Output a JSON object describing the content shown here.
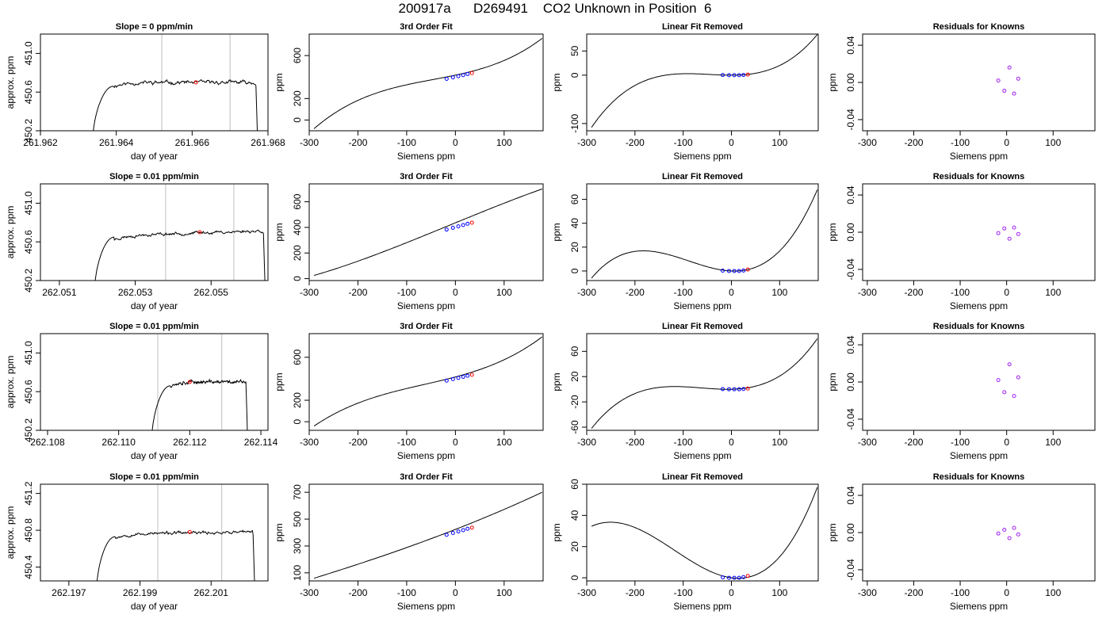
{
  "figure": {
    "title": "200917a      D269491    CO2 Unknown in Position  6",
    "colors": {
      "trace": "#000000",
      "grid_marker": "#bebebe",
      "known": "#0000ff",
      "unknown": "#ff0000",
      "residual": "#a020f0"
    }
  },
  "chart_data": [
    {
      "type": "line",
      "row": 0,
      "col": 0,
      "title": "Slope =  0  ppm/min",
      "xlabel": "day of year",
      "ylabel": "approx. ppm",
      "xlim": [
        261.962,
        261.968
      ],
      "ylim": [
        450.2,
        451.2
      ],
      "xticks": [
        "261.962",
        "261.964",
        "261.966",
        "261.968"
      ],
      "yticks": [
        "450.2",
        "450.6",
        "451.0"
      ],
      "vlines": [
        261.9652,
        261.967
      ],
      "marker": {
        "x": 261.9661,
        "y": 450.7
      },
      "trace": {
        "x_start": 261.96338,
        "x_rise": 261.96392,
        "x_fall": 261.96768,
        "x_end": 261.96775,
        "start_y": 450.1,
        "plateau_y": 450.7,
        "drift": 0.0,
        "noise": 0.012,
        "seed": 11
      }
    },
    {
      "type": "scatter",
      "row": 0,
      "col": 1,
      "title": "3rd Order Fit",
      "xlabel": "Siemens ppm",
      "ylabel": "ppm",
      "xlim": [
        -300,
        180
      ],
      "ylim": [
        -100,
        800
      ],
      "xticks": [
        "-300",
        "-200",
        "-100",
        "0",
        "100"
      ],
      "yticks": [
        "0",
        "200",
        "600"
      ],
      "knowns": [
        {
          "x": -18,
          "y": 383
        },
        {
          "x": -5,
          "y": 397
        },
        {
          "x": 6,
          "y": 408
        },
        {
          "x": 16,
          "y": 418
        },
        {
          "x": 25,
          "y": 428
        }
      ],
      "unknown": {
        "x": 34,
        "y": 437
      },
      "curve": {
        "x_start": -290,
        "x_end": 178,
        "y": [
          -80,
          290,
          440,
          760
        ]
      }
    },
    {
      "type": "scatter",
      "row": 0,
      "col": 2,
      "title": "Linear Fit Removed",
      "xlabel": "Siemens ppm",
      "ylabel": "ppm",
      "xlim": [
        -300,
        180
      ],
      "ylim": [
        -115,
        85
      ],
      "xticks": [
        "-300",
        "-200",
        "-100",
        "0",
        "100"
      ],
      "yticks": [
        "-100",
        "0",
        "50"
      ],
      "knowns": [
        {
          "x": -18,
          "y": 0.3
        },
        {
          "x": -5,
          "y": 0
        },
        {
          "x": 6,
          "y": 0
        },
        {
          "x": 16,
          "y": 0
        },
        {
          "x": 25,
          "y": 0.4
        }
      ],
      "unknown": {
        "x": 34,
        "y": 1.2
      },
      "curve": {
        "x_start": -290,
        "x_end": 178,
        "y": [
          -108,
          3,
          0,
          84
        ]
      }
    },
    {
      "type": "scatter",
      "row": 0,
      "col": 3,
      "title": "Residuals for Knowns",
      "xlabel": "Siemens ppm",
      "ylabel": "ppm",
      "xlim": [
        -310,
        190
      ],
      "ylim": [
        -0.052,
        0.052
      ],
      "xticks": [
        "-300",
        "-200",
        "-100",
        "0",
        "100"
      ],
      "yticks": [
        "-0.04",
        "0.00",
        "0.04"
      ],
      "residuals": [
        {
          "x": -18,
          "y": 0.002
        },
        {
          "x": -5,
          "y": -0.009
        },
        {
          "x": 6,
          "y": 0.016
        },
        {
          "x": 16,
          "y": -0.012
        },
        {
          "x": 25,
          "y": 0.004
        }
      ]
    },
    {
      "type": "line",
      "row": 1,
      "col": 0,
      "title": "Slope =  0.01  ppm/min",
      "xlabel": "day of year",
      "ylabel": "approx. ppm",
      "xlim": [
        262.0505,
        262.0565
      ],
      "ylim": [
        450.2,
        451.2
      ],
      "xticks": [
        "262.051",
        "262.053",
        "262.055"
      ],
      "yticks": [
        "450.2",
        "450.6",
        "451.0"
      ],
      "vlines": [
        262.0538,
        262.0556
      ],
      "marker": {
        "x": 262.0547,
        "y": 450.7
      },
      "trace": {
        "x_start": 262.05193,
        "x_rise": 262.05245,
        "x_fall": 262.05638,
        "x_end": 262.05645,
        "start_y": 450.1,
        "plateau_y": 450.69,
        "drift": 0.05,
        "noise": 0.01,
        "seed": 23
      }
    },
    {
      "type": "scatter",
      "row": 1,
      "col": 1,
      "title": "3rd Order Fit",
      "xlabel": "Siemens ppm",
      "ylabel": "ppm",
      "xlim": [
        -300,
        180
      ],
      "ylim": [
        -15,
        740
      ],
      "xticks": [
        "-300",
        "-200",
        "-100",
        "0",
        "100"
      ],
      "yticks": [
        "0",
        "200",
        "400",
        "600"
      ],
      "knowns": [
        {
          "x": -18,
          "y": 383
        },
        {
          "x": -5,
          "y": 397
        },
        {
          "x": 6,
          "y": 408
        },
        {
          "x": 16,
          "y": 418
        },
        {
          "x": 25,
          "y": 428
        }
      ],
      "unknown": {
        "x": 34,
        "y": 437
      },
      "curve": {
        "x_start": -290,
        "x_end": 178,
        "y": [
          25,
          230,
          470,
          700
        ]
      }
    },
    {
      "type": "scatter",
      "row": 1,
      "col": 2,
      "title": "Linear Fit Removed",
      "xlabel": "Siemens ppm",
      "ylabel": "ppm",
      "xlim": [
        -300,
        180
      ],
      "ylim": [
        -8,
        73
      ],
      "xticks": [
        "-300",
        "-200",
        "-100",
        "0",
        "100"
      ],
      "yticks": [
        "0",
        "20",
        "40",
        "60"
      ],
      "knowns": [
        {
          "x": -18,
          "y": 0.3
        },
        {
          "x": -5,
          "y": 0
        },
        {
          "x": 6,
          "y": 0
        },
        {
          "x": 16,
          "y": 0
        },
        {
          "x": 25,
          "y": 0.4
        }
      ],
      "unknown": {
        "x": 34,
        "y": 1.2
      },
      "curve": {
        "x_start": -290,
        "x_end": 178,
        "y": [
          -6,
          10,
          0,
          68
        ]
      }
    },
    {
      "type": "scatter",
      "row": 1,
      "col": 3,
      "title": "Residuals for Knowns",
      "xlabel": "Siemens ppm",
      "ylabel": "ppm",
      "xlim": [
        -310,
        190
      ],
      "ylim": [
        -0.052,
        0.052
      ],
      "xticks": [
        "-300",
        "-200",
        "-100",
        "0",
        "100"
      ],
      "yticks": [
        "-0.04",
        "0.00",
        "0.04"
      ],
      "residuals": [
        {
          "x": -18,
          "y": -0.001
        },
        {
          "x": -5,
          "y": 0.004
        },
        {
          "x": 6,
          "y": -0.007
        },
        {
          "x": 16,
          "y": 0.005
        },
        {
          "x": 25,
          "y": -0.002
        }
      ]
    },
    {
      "type": "line",
      "row": 2,
      "col": 0,
      "title": "Slope =  0.01  ppm/min",
      "xlabel": "day of year",
      "ylabel": "approx. ppm",
      "xlim": [
        262.1078,
        262.1142
      ],
      "ylim": [
        450.2,
        451.2
      ],
      "xticks": [
        "262.108",
        "262.110",
        "262.112",
        "262.114"
      ],
      "yticks": [
        "450.2",
        "450.6",
        "451.0"
      ],
      "vlines": [
        262.1111,
        262.1129
      ],
      "marker": {
        "x": 262.112,
        "y": 450.7
      },
      "trace": {
        "x_start": 262.11093,
        "x_rise": 262.11145,
        "x_fall": 262.11358,
        "x_end": 262.11365,
        "start_y": 450.1,
        "plateau_y": 450.7,
        "drift": 0.0,
        "noise": 0.011,
        "seed": 37
      }
    },
    {
      "type": "scatter",
      "row": 2,
      "col": 1,
      "title": "3rd Order Fit",
      "xlabel": "Siemens ppm",
      "ylabel": "ppm",
      "xlim": [
        -300,
        180
      ],
      "ylim": [
        -80,
        820
      ],
      "xticks": [
        "-300",
        "-200",
        "-100",
        "0",
        "100"
      ],
      "yticks": [
        "0",
        "200",
        "600"
      ],
      "knowns": [
        {
          "x": -18,
          "y": 383
        },
        {
          "x": -5,
          "y": 397
        },
        {
          "x": 6,
          "y": 408
        },
        {
          "x": 16,
          "y": 418
        },
        {
          "x": 25,
          "y": 428
        }
      ],
      "unknown": {
        "x": 34,
        "y": 437
      },
      "curve": {
        "x_start": -290,
        "x_end": 178,
        "y": [
          -40,
          270,
          445,
          790
        ]
      }
    },
    {
      "type": "scatter",
      "row": 2,
      "col": 2,
      "title": "Linear Fit Removed",
      "xlabel": "Siemens ppm",
      "ylabel": "ppm",
      "xlim": [
        -300,
        180
      ],
      "ylim": [
        -65,
        88
      ],
      "xticks": [
        "-300",
        "-200",
        "-100",
        "0",
        "100"
      ],
      "yticks": [
        "-60",
        "-20",
        "20",
        "60"
      ],
      "knowns": [
        {
          "x": -18,
          "y": 0.3
        },
        {
          "x": -5,
          "y": 0
        },
        {
          "x": 6,
          "y": 0
        },
        {
          "x": 16,
          "y": 0
        },
        {
          "x": 25,
          "y": 0.4
        }
      ],
      "unknown": {
        "x": 34,
        "y": 1.2
      },
      "curve": {
        "x_start": -290,
        "x_end": 178,
        "y": [
          -62,
          4,
          0,
          80
        ]
      }
    },
    {
      "type": "scatter",
      "row": 2,
      "col": 3,
      "title": "Residuals for Knowns",
      "xlabel": "Siemens ppm",
      "ylabel": "ppm",
      "xlim": [
        -310,
        190
      ],
      "ylim": [
        -0.052,
        0.052
      ],
      "xticks": [
        "-300",
        "-200",
        "-100",
        "0",
        "100"
      ],
      "yticks": [
        "-0.04",
        "0.00",
        "0.04"
      ],
      "residuals": [
        {
          "x": -18,
          "y": 0.002
        },
        {
          "x": -5,
          "y": -0.011
        },
        {
          "x": 6,
          "y": 0.019
        },
        {
          "x": 16,
          "y": -0.015
        },
        {
          "x": 25,
          "y": 0.005
        }
      ]
    },
    {
      "type": "line",
      "row": 3,
      "col": 0,
      "title": "Slope =  0.01  ppm/min",
      "xlabel": "day of year",
      "ylabel": "approx. ppm",
      "xlim": [
        262.1962,
        262.2026
      ],
      "ylim": [
        450.25,
        451.3
      ],
      "xticks": [
        "262.197",
        "262.199",
        "262.201"
      ],
      "yticks": [
        "450.4",
        "450.8",
        "451.2"
      ],
      "vlines": [
        262.1995,
        262.2013
      ],
      "marker": {
        "x": 262.2004,
        "y": 450.78
      },
      "trace": {
        "x_start": 262.19778,
        "x_rise": 262.1983,
        "x_fall": 262.20218,
        "x_end": 262.20225,
        "start_y": 450.15,
        "plateau_y": 450.77,
        "drift": 0.02,
        "noise": 0.01,
        "seed": 53
      }
    },
    {
      "type": "scatter",
      "row": 3,
      "col": 1,
      "title": "3rd Order Fit",
      "xlabel": "Siemens ppm",
      "ylabel": "ppm",
      "xlim": [
        -300,
        180
      ],
      "ylim": [
        40,
        760
      ],
      "xticks": [
        "-300",
        "-200",
        "-100",
        "0",
        "100"
      ],
      "yticks": [
        "100",
        "300",
        "500",
        "700"
      ],
      "knowns": [
        {
          "x": -18,
          "y": 383
        },
        {
          "x": -5,
          "y": 397
        },
        {
          "x": 6,
          "y": 408
        },
        {
          "x": 16,
          "y": 418
        },
        {
          "x": 25,
          "y": 428
        }
      ],
      "unknown": {
        "x": 34,
        "y": 437
      },
      "curve": {
        "x_start": -290,
        "x_end": 178,
        "y": [
          60,
          245,
          455,
          700
        ]
      }
    },
    {
      "type": "scatter",
      "row": 3,
      "col": 2,
      "title": "Linear Fit Removed",
      "xlabel": "Siemens ppm",
      "ylabel": "ppm",
      "xlim": [
        -300,
        180
      ],
      "ylim": [
        -2,
        60
      ],
      "xticks": [
        "-300",
        "-200",
        "-100",
        "0",
        "100"
      ],
      "yticks": [
        "0",
        "20",
        "40",
        "60"
      ],
      "knowns": [
        {
          "x": -18,
          "y": 0.3
        },
        {
          "x": -5,
          "y": 0
        },
        {
          "x": 6,
          "y": 0
        },
        {
          "x": 16,
          "y": 0
        },
        {
          "x": 25,
          "y": 0.4
        }
      ],
      "unknown": {
        "x": 34,
        "y": 1.2
      },
      "curve": {
        "x_start": -290,
        "x_end": 178,
        "y": [
          33,
          14,
          0,
          58
        ]
      }
    },
    {
      "type": "scatter",
      "row": 3,
      "col": 3,
      "title": "Residuals for Knowns",
      "xlabel": "Siemens ppm",
      "ylabel": "ppm",
      "xlim": [
        -310,
        190
      ],
      "ylim": [
        -0.052,
        0.052
      ],
      "xticks": [
        "-300",
        "-200",
        "-100",
        "0",
        "100"
      ],
      "yticks": [
        "-0.04",
        "0.00",
        "0.04"
      ],
      "residuals": [
        {
          "x": -18,
          "y": -0.001
        },
        {
          "x": -5,
          "y": 0.003
        },
        {
          "x": 6,
          "y": -0.006
        },
        {
          "x": 16,
          "y": 0.005
        },
        {
          "x": 25,
          "y": -0.002
        }
      ]
    }
  ]
}
